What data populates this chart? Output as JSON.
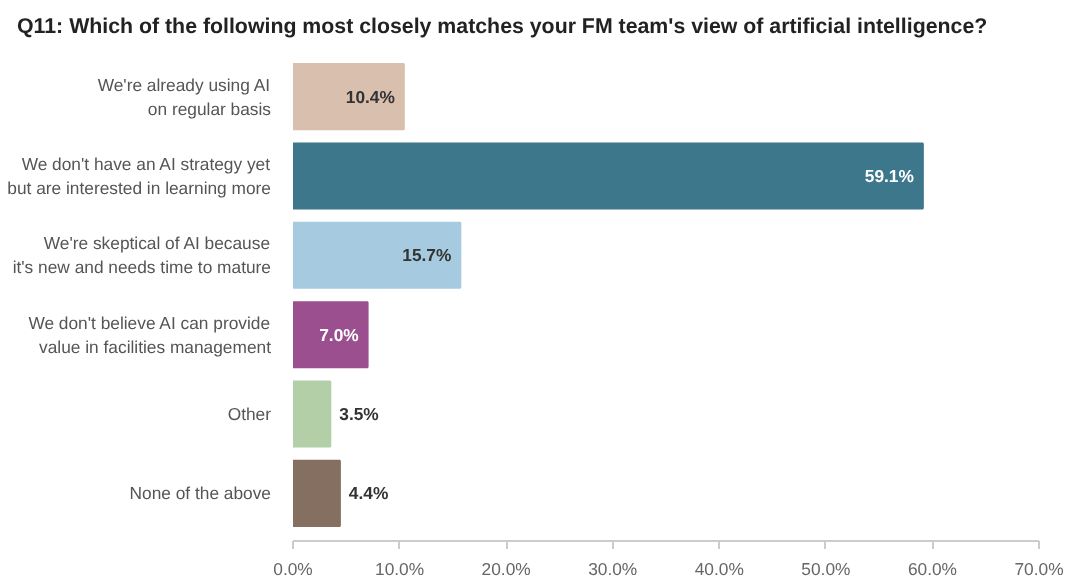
{
  "chart_data": {
    "type": "bar",
    "orientation": "horizontal",
    "title": "Q11: Which of the following most closely matches your FM team's view of artificial intelligence?",
    "categories": [
      "We're already using AI\non regular basis",
      "We don't have an AI strategy yet\nbut are interested in learning more",
      "We're skeptical of AI because\nit's new and needs time to mature",
      "We don't believe AI can provide\nvalue in facilities management",
      "Other",
      "None of the above"
    ],
    "values": [
      10.4,
      59.1,
      15.7,
      7.0,
      3.5,
      4.4
    ],
    "value_labels": [
      "10.4%",
      "59.1%",
      "15.7%",
      "7.0%",
      "3.5%",
      "4.4%"
    ],
    "colors": [
      "#d9bfae",
      "#3d778c",
      "#a6cbe0",
      "#9b4f8e",
      "#b2cfa8",
      "#856f60"
    ],
    "xlim": [
      0,
      70
    ],
    "xticks": [
      {
        "value": 0,
        "label": "0.0%"
      },
      {
        "value": 10,
        "label": "10.0%"
      },
      {
        "value": 20,
        "label": "20.0%"
      },
      {
        "value": 30,
        "label": "30.0%"
      },
      {
        "value": 40,
        "label": "40.0%"
      },
      {
        "value": 50,
        "label": "50.0%"
      },
      {
        "value": 60,
        "label": "60.0%"
      },
      {
        "value": 70,
        "label": "70.0%"
      }
    ],
    "grid": false
  }
}
